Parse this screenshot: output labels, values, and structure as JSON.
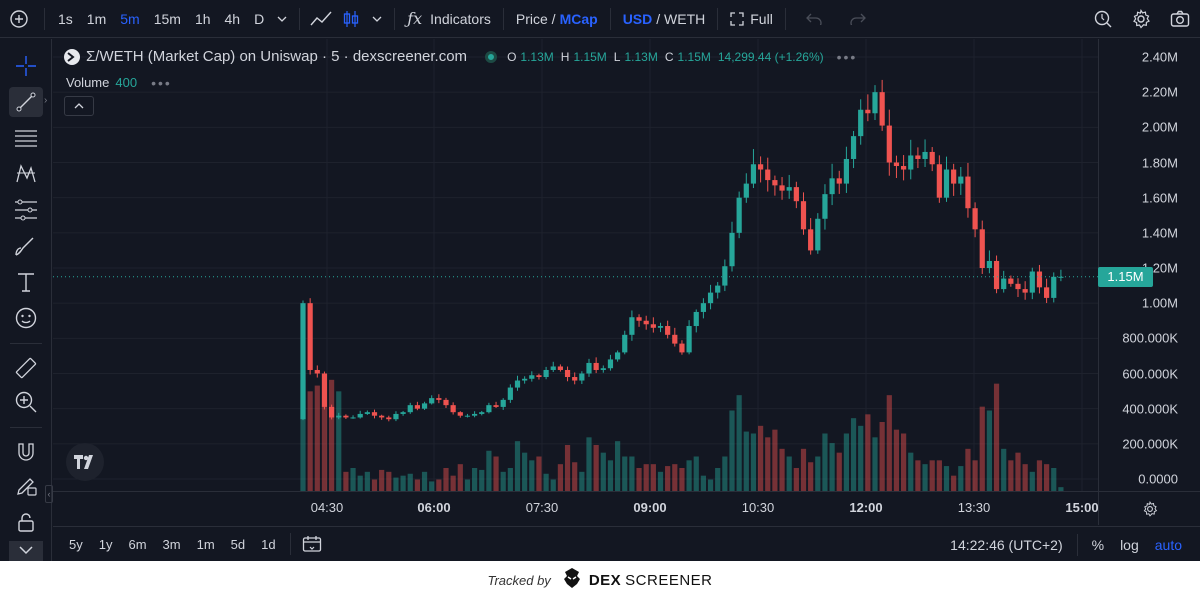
{
  "toolbar": {
    "intervals": [
      "1s",
      "1m",
      "5m",
      "15m",
      "1h",
      "4h",
      "D"
    ],
    "active_interval": "5m",
    "indicators_label": "Indicators",
    "price_label": "Price /",
    "mcap_label": "MCap",
    "usd_label": "USD",
    "weth_label": "/ WETH",
    "full_label": "Full"
  },
  "legend": {
    "title": "Σ/WETH (Market Cap) on Uniswap · 5 · dexscreener.com",
    "o_label": "O",
    "o_value": "1.13M",
    "h_label": "H",
    "h_value": "1.15M",
    "l_label": "L",
    "l_value": "1.13M",
    "c_label": "C",
    "c_value": "1.15M",
    "change": "14,299.44 (+1.26%)",
    "volume_label": "Volume",
    "volume_value": "400"
  },
  "price_axis": [
    "2.40M",
    "2.20M",
    "2.00M",
    "1.80M",
    "1.60M",
    "1.40M",
    "1.20M",
    "1.00M",
    "800.000K",
    "600.000K",
    "400.000K",
    "200.000K",
    "0.0000"
  ],
  "current_price_label": "1.15M",
  "time_axis": [
    {
      "label": "04:30",
      "bold": false
    },
    {
      "label": "06:00",
      "bold": true
    },
    {
      "label": "07:30",
      "bold": false
    },
    {
      "label": "09:00",
      "bold": true
    },
    {
      "label": "10:30",
      "bold": false
    },
    {
      "label": "12:00",
      "bold": true
    },
    {
      "label": "13:30",
      "bold": false
    },
    {
      "label": "15:00",
      "bold": true
    }
  ],
  "bottom": {
    "ranges": [
      "5y",
      "1y",
      "6m",
      "3m",
      "1m",
      "5d",
      "1d"
    ],
    "clock": "14:22:46 (UTC+2)",
    "percent": "%",
    "log": "log",
    "auto": "auto"
  },
  "footer": {
    "tracked_by": "Tracked by",
    "brand_a": "DEX",
    "brand_b": "SCREENER"
  },
  "colors": {
    "up": "#26a69a",
    "down": "#ef5350",
    "accent": "#2962ff",
    "background": "#131722"
  },
  "chart_data": {
    "type": "candlestick",
    "ylim": [
      0,
      2400000
    ],
    "close_series": [
      1000000,
      620000,
      600000,
      410000,
      350000,
      360000,
      350000,
      350000,
      370000,
      380000,
      360000,
      350000,
      340000,
      370000,
      380000,
      420000,
      400000,
      430000,
      460000,
      450000,
      420000,
      380000,
      360000,
      360000,
      370000,
      380000,
      420000,
      410000,
      450000,
      520000,
      560000,
      570000,
      590000,
      580000,
      620000,
      640000,
      620000,
      580000,
      560000,
      600000,
      660000,
      620000,
      630000,
      680000,
      720000,
      820000,
      920000,
      900000,
      880000,
      860000,
      870000,
      820000,
      770000,
      720000,
      870000,
      950000,
      1000000,
      1060000,
      1100000,
      1210000,
      1400000,
      1600000,
      1680000,
      1790000,
      1760000,
      1700000,
      1670000,
      1640000,
      1660000,
      1580000,
      1420000,
      1300000,
      1480000,
      1620000,
      1710000,
      1680000,
      1820000,
      1950000,
      2100000,
      2080000,
      2200000,
      2010000,
      1800000,
      1780000,
      1760000,
      1840000,
      1820000,
      1860000,
      1790000,
      1600000,
      1760000,
      1680000,
      1720000,
      1540000,
      1420000,
      1200000,
      1240000,
      1080000,
      1140000,
      1110000,
      1080000,
      1060000,
      1180000,
      1090000,
      1030000,
      1150000,
      1150000
    ],
    "volume_series_k": [
      580,
      520,
      550,
      440,
      580,
      520,
      100,
      120,
      80,
      100,
      60,
      110,
      100,
      70,
      80,
      90,
      60,
      100,
      50,
      60,
      120,
      80,
      140,
      60,
      120,
      110,
      210,
      180,
      100,
      120,
      260,
      200,
      160,
      180,
      90,
      60,
      140,
      240,
      150,
      100,
      280,
      240,
      200,
      160,
      260,
      180,
      180,
      120,
      140,
      140,
      100,
      130,
      140,
      120,
      160,
      180,
      80,
      60,
      120,
      180,
      420,
      500,
      310,
      300,
      340,
      280,
      320,
      220,
      180,
      120,
      220,
      150,
      180,
      300,
      250,
      200,
      300,
      380,
      340,
      400,
      280,
      360,
      500,
      320,
      300,
      200,
      160,
      140,
      160,
      160,
      130,
      80,
      130,
      220,
      160,
      440,
      420,
      560,
      220,
      160,
      200,
      140,
      100,
      160,
      140,
      120,
      20
    ]
  }
}
